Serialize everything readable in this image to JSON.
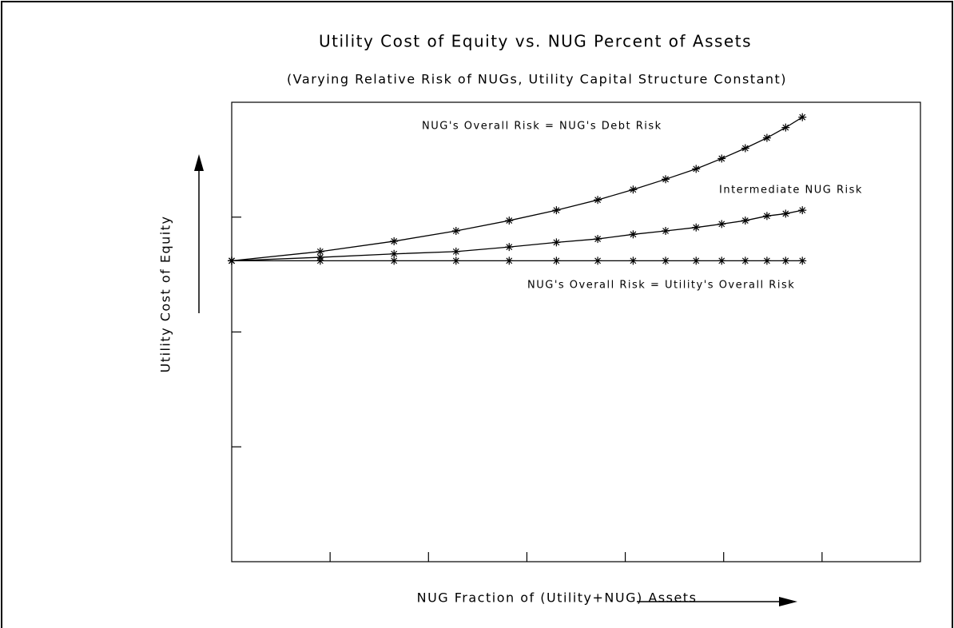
{
  "chart_data": {
    "type": "line",
    "title": "Utility Cost of Equity vs. NUG Percent of Assets",
    "subtitle": "(Varying Relative Risk of NUGs, Utility Capital Structure Constant)",
    "x_label": "NUG Fraction of (Utility+NUG) Assets",
    "y_label": "Utility Cost of Equity",
    "x": [
      0,
      0.9,
      1.65,
      2.28,
      2.82,
      3.3,
      3.72,
      4.08,
      4.41,
      4.72,
      4.98,
      5.22,
      5.44,
      5.63,
      5.8
    ],
    "series": [
      {
        "name": "NUG's Overall Risk = NUG's Debt Risk",
        "color": "#000000",
        "values": [
          2.62,
          2.7,
          2.79,
          2.88,
          2.97,
          3.06,
          3.15,
          3.24,
          3.33,
          3.42,
          3.51,
          3.6,
          3.69,
          3.78,
          3.87
        ]
      },
      {
        "name": "Intermediate NUG Risk",
        "color": "#000000",
        "values": [
          2.62,
          2.65,
          2.68,
          2.7,
          2.74,
          2.78,
          2.81,
          2.85,
          2.88,
          2.91,
          2.94,
          2.97,
          3.01,
          3.03,
          3.06
        ]
      },
      {
        "name": "NUG's Overall Risk = Utility's Overall Risk",
        "color": "#000000",
        "values": [
          2.62,
          2.62,
          2.62,
          2.62,
          2.62,
          2.62,
          2.62,
          2.62,
          2.62,
          2.62,
          2.62,
          2.62,
          2.62,
          2.62,
          2.62
        ]
      }
    ],
    "xlim": [
      0,
      7
    ],
    "xticks": [
      1,
      2,
      3,
      4,
      5,
      6
    ],
    "ylim": [
      0,
      4
    ],
    "yticks": [
      1,
      2,
      3
    ]
  }
}
